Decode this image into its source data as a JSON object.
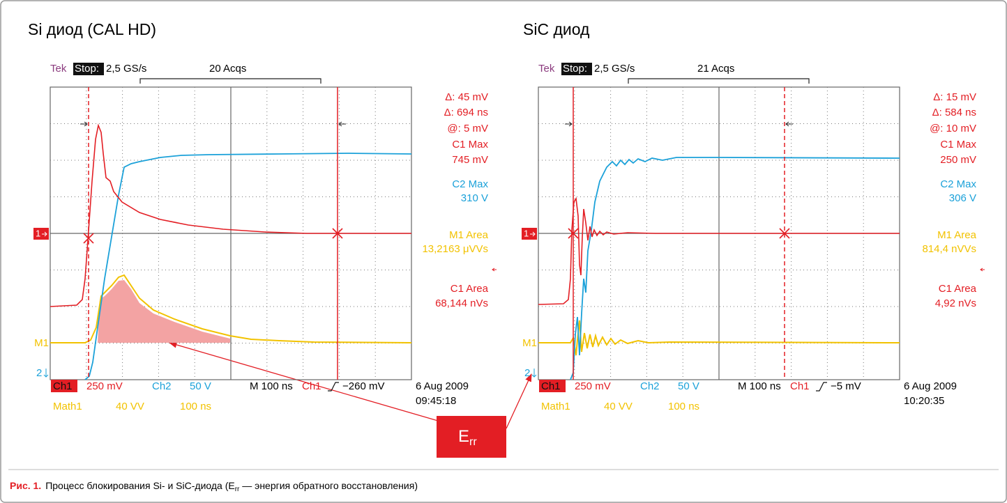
{
  "figure": {
    "panels": [
      {
        "title": "Si диод (CAL HD)",
        "tek": "Tek",
        "stop": "Stop:",
        "rate": "2,5 GS/s",
        "acqs": "20 Acqs",
        "readouts": [
          "Δ: 45 mV",
          "Δ: 694 ns",
          "@: 5 mV",
          "C1 Max",
          "745 mV",
          "C2 Max",
          "310 V",
          "M1 Area",
          "13,2163 μVVs",
          "C1 Area",
          "68,144 nVs"
        ],
        "markers": {
          "ch1": "1",
          "m1": "M1",
          "ch2": "2"
        },
        "footer": {
          "ch1": "Ch1",
          "ch1_scale": "250 mV",
          "ch2": "Ch2",
          "ch2_scale": "50 V",
          "timebase": "M 100 ns",
          "trig_ch": "Ch1",
          "trig_level": "−260 mV",
          "date": "6 Aug 2009",
          "time": "09:45:18",
          "math": "Math1",
          "math_scale": "40 VV",
          "math_time": "100 ns"
        }
      },
      {
        "title": "SiC диод",
        "tek": "Tek",
        "stop": "Stop:",
        "rate": "2,5 GS/s",
        "acqs": "21 Acqs",
        "readouts": [
          "Δ: 15 mV",
          "Δ: 584 ns",
          "@: 10 mV",
          "C1 Max",
          "250 mV",
          "C2 Max",
          "306 V",
          "M1 Area",
          "814,4 nVVs",
          "C1 Area",
          "4,92 nVs"
        ],
        "markers": {
          "ch1": "1",
          "m1": "M1",
          "ch2": "2"
        },
        "footer": {
          "ch1": "Ch1",
          "ch1_scale": "250 mV",
          "ch2": "Ch2",
          "ch2_scale": "50 V",
          "timebase": "M 100 ns",
          "trig_ch": "Ch1",
          "trig_level": "−5 mV",
          "date": "6 Aug 2009",
          "time": "10:20:35",
          "math": "Math1",
          "math_scale": "40 VV",
          "math_time": "100 ns"
        }
      }
    ],
    "callout": {
      "main": "E",
      "sub": "rr"
    },
    "caption": {
      "label": "Рис. 1.",
      "text_before": "Процесс блокирования Si- и SiC-диода (E",
      "sub": "rr",
      "text_after": " — энергия обратного восстановления)"
    }
  }
}
